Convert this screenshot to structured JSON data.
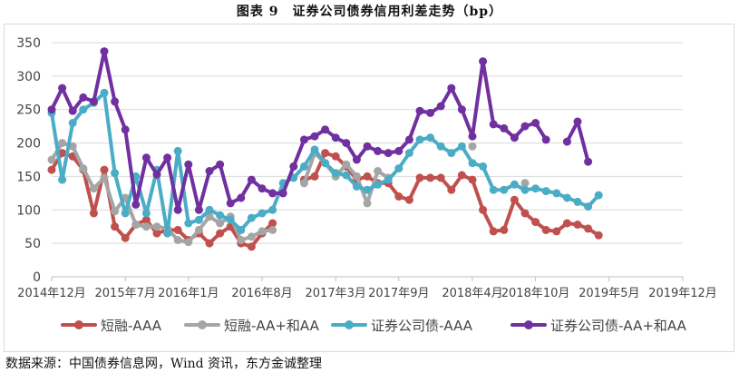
{
  "title": "图表 9　证券公司债券信用利差走势（bp）",
  "source": "数据来源：中国债券信息网，Wind 资讯，东方金诚整理",
  "chart_data": {
    "type": "line",
    "ylim": [
      0,
      350
    ],
    "yticks": [
      0,
      50,
      100,
      150,
      200,
      250,
      300,
      350
    ],
    "xlim": [
      "2014-12",
      "2019-12"
    ],
    "xticks": [
      "2014年12月",
      "2015年7月",
      "2016年1月",
      "2016年8月",
      "2017年3月",
      "2017年9月",
      "2018年4月",
      "2018年10月",
      "2019年5月",
      "2019年12月"
    ],
    "grid": true,
    "legend_position": "bottom",
    "series": [
      {
        "name": "短融-AAA",
        "color": "#c0504d",
        "x": [
          "2014-12",
          "2015-01",
          "2015-02",
          "2015-03",
          "2015-04",
          "2015-05",
          "2015-06",
          "2015-07",
          "2015-08",
          "2015-09",
          "2015-10",
          "2015-11",
          "2015-12",
          "2016-01",
          "2016-02",
          "2016-03",
          "2016-04",
          "2016-05",
          "2016-06",
          "2016-07",
          "2016-08",
          "2016-09",
          "2016-10",
          "2016-11",
          "2016-12",
          "2017-01",
          "2017-02",
          "2017-03",
          "2017-04",
          "2017-05",
          "2017-06",
          "2017-07",
          "2017-08",
          "2017-09",
          "2017-10",
          "2017-11",
          "2017-12",
          "2018-01",
          "2018-02",
          "2018-03",
          "2018-04",
          "2018-05",
          "2018-06",
          "2018-07",
          "2018-08",
          "2018-09",
          "2018-10",
          "2018-11",
          "2018-12",
          "2019-01",
          "2019-02",
          "2019-03",
          "2019-04",
          "2019-05"
        ],
        "values": [
          160,
          185,
          180,
          160,
          95,
          160,
          75,
          58,
          78,
          85,
          65,
          70,
          70,
          55,
          65,
          50,
          65,
          75,
          50,
          45,
          65,
          80,
          null,
          null,
          145,
          150,
          185,
          180,
          165,
          145,
          150,
          140,
          140,
          120,
          115,
          148,
          148,
          148,
          130,
          152,
          145,
          100,
          68,
          70,
          115,
          95,
          82,
          70,
          68,
          80,
          78,
          72,
          62,
          null
        ]
      },
      {
        "name": "短融-AA+和AA",
        "color": "#a5a5a5",
        "x": [
          "2014-12",
          "2015-01",
          "2015-02",
          "2015-03",
          "2015-04",
          "2015-05",
          "2015-06",
          "2015-07",
          "2015-08",
          "2015-09",
          "2015-10",
          "2015-11",
          "2015-12",
          "2016-01",
          "2016-02",
          "2016-03",
          "2016-04",
          "2016-05",
          "2016-06",
          "2016-07",
          "2016-08",
          "2016-09",
          "2016-10",
          "2016-11",
          "2016-12",
          "2017-01",
          "2017-02",
          "2017-03",
          "2017-04",
          "2017-05",
          "2017-06",
          "2017-07",
          "2017-08",
          "2017-09",
          "2017-10",
          "2017-11",
          "2017-12",
          "2018-01",
          "2018-02",
          "2018-03",
          "2018-04",
          "2018-05",
          "2018-06",
          "2018-07",
          "2018-08",
          "2018-09",
          "2018-10",
          "2018-11",
          "2018-12",
          "2019-01",
          "2019-02",
          "2019-03",
          "2019-04",
          "2019-05"
        ],
        "values": [
          175,
          200,
          195,
          162,
          132,
          148,
          98,
          118,
          78,
          75,
          75,
          72,
          55,
          52,
          70,
          90,
          80,
          90,
          55,
          60,
          68,
          70,
          null,
          null,
          140,
          185,
          170,
          150,
          168,
          150,
          110,
          158,
          148,
          null,
          null,
          null,
          null,
          null,
          null,
          null,
          195,
          null,
          null,
          null,
          null,
          140,
          null,
          null,
          null,
          null,
          null,
          null,
          null,
          null
        ]
      },
      {
        "name": "证券公司债-AAA",
        "color": "#4bacc6",
        "x": [
          "2014-12",
          "2015-01",
          "2015-02",
          "2015-03",
          "2015-04",
          "2015-05",
          "2015-06",
          "2015-07",
          "2015-08",
          "2015-09",
          "2015-10",
          "2015-11",
          "2015-12",
          "2016-01",
          "2016-02",
          "2016-03",
          "2016-04",
          "2016-05",
          "2016-06",
          "2016-07",
          "2016-08",
          "2016-09",
          "2016-10",
          "2016-11",
          "2016-12",
          "2017-01",
          "2017-02",
          "2017-03",
          "2017-04",
          "2017-05",
          "2017-06",
          "2017-07",
          "2017-08",
          "2017-09",
          "2017-10",
          "2017-11",
          "2017-12",
          "2018-01",
          "2018-02",
          "2018-03",
          "2018-04",
          "2018-05",
          "2018-06",
          "2018-07",
          "2018-08",
          "2018-09",
          "2018-10",
          "2018-11",
          "2018-12",
          "2019-01",
          "2019-02",
          "2019-03",
          "2019-04",
          "2019-05"
        ],
        "values": [
          245,
          145,
          230,
          250,
          260,
          275,
          155,
          95,
          150,
          95,
          160,
          65,
          188,
          80,
          85,
          100,
          92,
          85,
          70,
          88,
          95,
          100,
          140,
          148,
          165,
          190,
          170,
          155,
          152,
          135,
          130,
          138,
          145,
          162,
          185,
          205,
          208,
          195,
          185,
          195,
          170,
          165,
          130,
          130,
          138,
          130,
          132,
          128,
          125,
          118,
          112,
          105,
          122,
          null
        ]
      },
      {
        "name": "证券公司债-AA+和AA",
        "color": "#7030a0",
        "x": [
          "2014-12",
          "2015-01",
          "2015-02",
          "2015-03",
          "2015-04",
          "2015-05",
          "2015-06",
          "2015-07",
          "2015-08",
          "2015-09",
          "2015-10",
          "2015-11",
          "2015-12",
          "2016-01",
          "2016-02",
          "2016-03",
          "2016-04",
          "2016-05",
          "2016-06",
          "2016-07",
          "2016-08",
          "2016-09",
          "2016-10",
          "2016-11",
          "2016-12",
          "2017-01",
          "2017-02",
          "2017-03",
          "2017-04",
          "2017-05",
          "2017-06",
          "2017-07",
          "2017-08",
          "2017-09",
          "2017-10",
          "2017-11",
          "2017-12",
          "2018-01",
          "2018-02",
          "2018-03",
          "2018-04",
          "2018-05",
          "2018-06",
          "2018-07",
          "2018-08",
          "2018-09",
          "2018-10",
          "2018-11",
          "2018-12",
          "2019-01",
          "2019-02",
          "2019-03",
          "2019-04",
          "2019-05"
        ],
        "values": [
          250,
          282,
          248,
          268,
          262,
          337,
          262,
          220,
          108,
          178,
          153,
          178,
          100,
          168,
          100,
          158,
          168,
          110,
          118,
          145,
          132,
          125,
          125,
          165,
          205,
          210,
          220,
          208,
          200,
          175,
          195,
          188,
          185,
          188,
          205,
          248,
          245,
          255,
          282,
          250,
          210,
          322,
          228,
          222,
          208,
          225,
          230,
          205,
          null,
          202,
          232,
          172,
          null,
          null
        ]
      }
    ]
  }
}
